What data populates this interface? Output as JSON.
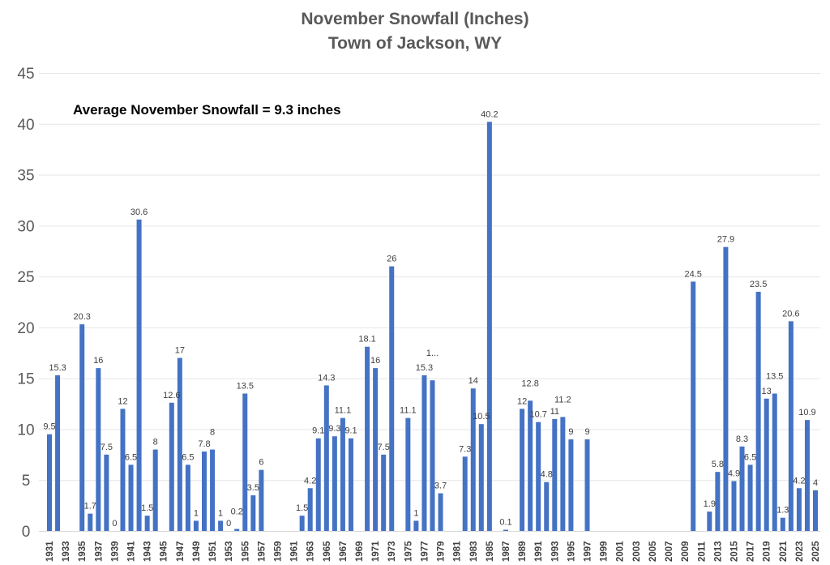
{
  "chart_data": {
    "type": "bar",
    "title": "November Snowfall (Inches)",
    "subtitle": "Town of Jackson, WY",
    "annotation": "Average November Snowfall = 9.3 inches",
    "xlabel": "",
    "ylabel": "",
    "ylim": [
      0,
      45
    ],
    "yticks": [
      0,
      5,
      10,
      15,
      20,
      25,
      30,
      35,
      40,
      45
    ],
    "grid": true,
    "bar_color": "#4472C4",
    "x_start": 1931,
    "x_end": 2025,
    "values": {
      "1931": 9.5,
      "1932": 15.3,
      "1935": 20.3,
      "1936": 1.7,
      "1937": 16,
      "1938": 7.5,
      "1939": 0,
      "1940": 12,
      "1941": 6.5,
      "1942": 30.6,
      "1943": 1.5,
      "1944": 8,
      "1946": 12.6,
      "1947": 17,
      "1948": 6.5,
      "1949": 1,
      "1950": 7.8,
      "1951": 8,
      "1952": 1,
      "1953": 0,
      "1954": 0.2,
      "1955": 13.5,
      "1956": 3.5,
      "1957": 6,
      "1962": 1.5,
      "1963": 4.2,
      "1964": 9.1,
      "1965": 14.3,
      "1966": 9.3,
      "1967": 11.1,
      "1968": 9.1,
      "1970": 18.1,
      "1971": 16,
      "1972": 7.5,
      "1973": 26,
      "1975": 11.1,
      "1976": 1,
      "1977": 15.3,
      "1978": 14.8,
      "1979": 3.7,
      "1982": 7.3,
      "1983": 14,
      "1984": 10.5,
      "1985": 40.2,
      "1987": 0.1,
      "1989": 12,
      "1990": 12.8,
      "1991": 10.7,
      "1992": 4.8,
      "1993": 11,
      "1994": 11.2,
      "1995": 9,
      "1997": 9,
      "2010": 24.5,
      "2012": 1.9,
      "2013": 5.8,
      "2014": 27.9,
      "2015": 4.9,
      "2016": 8.3,
      "2017": 6.5,
      "2018": 23.5,
      "2019": 13,
      "2020": 13.5,
      "2021": 1.3,
      "2022": 20.6,
      "2023": 4.2,
      "2024": 10.9,
      "2025": 4
    },
    "label_overrides": {
      "1978": "1..."
    }
  }
}
